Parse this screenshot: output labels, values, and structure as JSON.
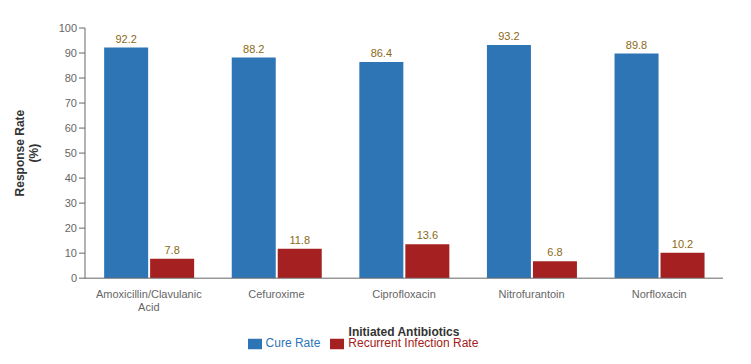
{
  "chart_data": {
    "type": "bar",
    "categories": [
      "Amoxicillin/Clavulanic\nAcid",
      "Cefuroxime",
      "Ciprofloxacin",
      "Nitrofurantoin",
      "Norfloxacin"
    ],
    "series": [
      {
        "name": "Cure Rate",
        "color": "#2E75B6",
        "values": [
          92.2,
          88.2,
          86.4,
          93.2,
          89.8
        ]
      },
      {
        "name": "Recurrent Infection Rate",
        "color": "#A52020",
        "values": [
          7.8,
          11.8,
          13.6,
          6.8,
          10.2
        ]
      }
    ],
    "xlabel": "Initiated Antibiotics",
    "ylabel": "Response Rate\n(%)",
    "ylim": [
      0,
      100
    ],
    "yticks": [
      0,
      10,
      20,
      30,
      40,
      50,
      60,
      70,
      80,
      90,
      100
    ],
    "data_labels": true,
    "grid": false,
    "legend": "bottom"
  }
}
